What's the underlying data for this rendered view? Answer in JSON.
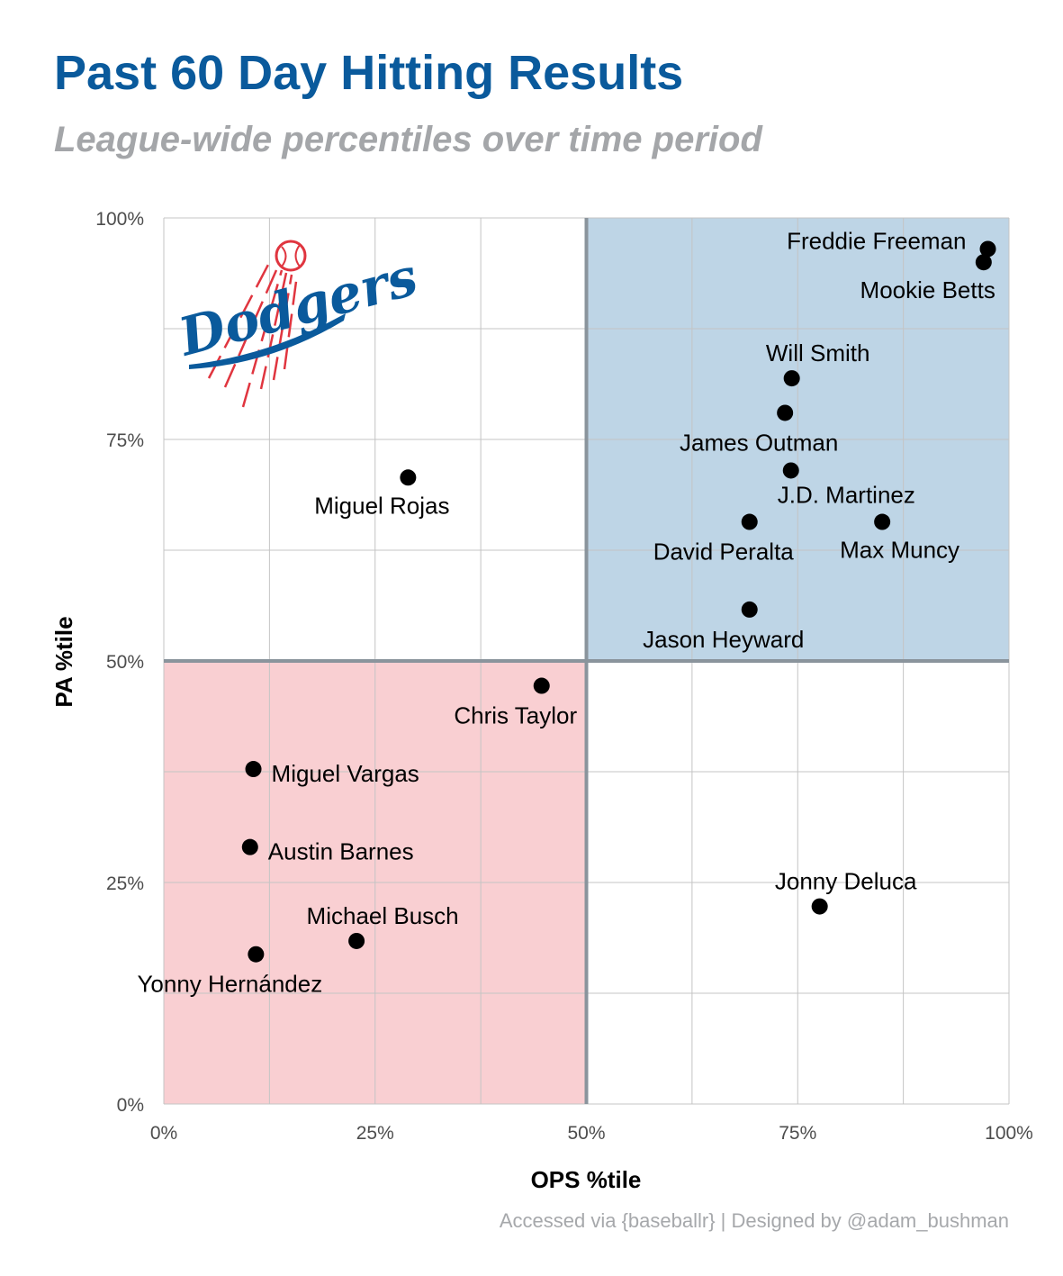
{
  "chart_data": {
    "type": "scatter",
    "title": "Past 60 Day Hitting Results",
    "subtitle": "League-wide percentiles over time period",
    "caption": "Accessed via {baseballr} | Designed by @adam_bushman",
    "xlabel": "OPS %tile",
    "ylabel": "PA %tile",
    "xlim": [
      0,
      1
    ],
    "ylim": [
      0,
      1
    ],
    "x_ticks": [
      {
        "value": 0,
        "label": "0%"
      },
      {
        "value": 0.25,
        "label": "25%"
      },
      {
        "value": 0.5,
        "label": "50%"
      },
      {
        "value": 0.75,
        "label": "75%"
      },
      {
        "value": 1,
        "label": "100%"
      }
    ],
    "y_ticks": [
      {
        "value": 0,
        "label": "0%"
      },
      {
        "value": 0.25,
        "label": "25%"
      },
      {
        "value": 0.5,
        "label": "50%"
      },
      {
        "value": 0.75,
        "label": "75%"
      },
      {
        "value": 1,
        "label": "100%"
      }
    ],
    "grid": true,
    "quadrants": [
      {
        "x": [
          0.5,
          1
        ],
        "y": [
          0.5,
          1
        ],
        "color": "#bed5e6"
      },
      {
        "x": [
          0,
          0.5
        ],
        "y": [
          0,
          0.5
        ],
        "color": "#f9cfd2"
      }
    ],
    "quadrant_line_color": "#8a949c",
    "point_color": "#000000",
    "logo": {
      "icon": "dodgers-logo-icon",
      "primary": "#0a5a9c",
      "accent": "#e0353f"
    },
    "points": [
      {
        "name": "Freddie Freeman",
        "x": 0.975,
        "y": 0.965,
        "label_pos": "left"
      },
      {
        "name": "Mookie Betts",
        "x": 0.97,
        "y": 0.95,
        "label_pos": "below-left"
      },
      {
        "name": "Will Smith",
        "x": 0.743,
        "y": 0.819,
        "label_pos": "above"
      },
      {
        "name": "James Outman",
        "x": 0.735,
        "y": 0.78,
        "label_pos": "below"
      },
      {
        "name": "J.D. Martinez",
        "x": 0.742,
        "y": 0.715,
        "label_pos": "below-right"
      },
      {
        "name": "David Peralta",
        "x": 0.693,
        "y": 0.657,
        "label_pos": "below"
      },
      {
        "name": "Max Muncy",
        "x": 0.85,
        "y": 0.657,
        "label_pos": "below-right"
      },
      {
        "name": "Jason Heyward",
        "x": 0.693,
        "y": 0.558,
        "label_pos": "below"
      },
      {
        "name": "Miguel Rojas",
        "x": 0.289,
        "y": 0.707,
        "label_pos": "below-left"
      },
      {
        "name": "Chris Taylor",
        "x": 0.447,
        "y": 0.472,
        "label_pos": "below"
      },
      {
        "name": "Miguel Vargas",
        "x": 0.106,
        "y": 0.378,
        "label_pos": "right"
      },
      {
        "name": "Austin Barnes",
        "x": 0.102,
        "y": 0.29,
        "label_pos": "right"
      },
      {
        "name": "Jonny Deluca",
        "x": 0.776,
        "y": 0.223,
        "label_pos": "above"
      },
      {
        "name": "Michael Busch",
        "x": 0.228,
        "y": 0.184,
        "label_pos": "above"
      },
      {
        "name": "Yonny Hernández",
        "x": 0.109,
        "y": 0.169,
        "label_pos": "below"
      }
    ]
  }
}
